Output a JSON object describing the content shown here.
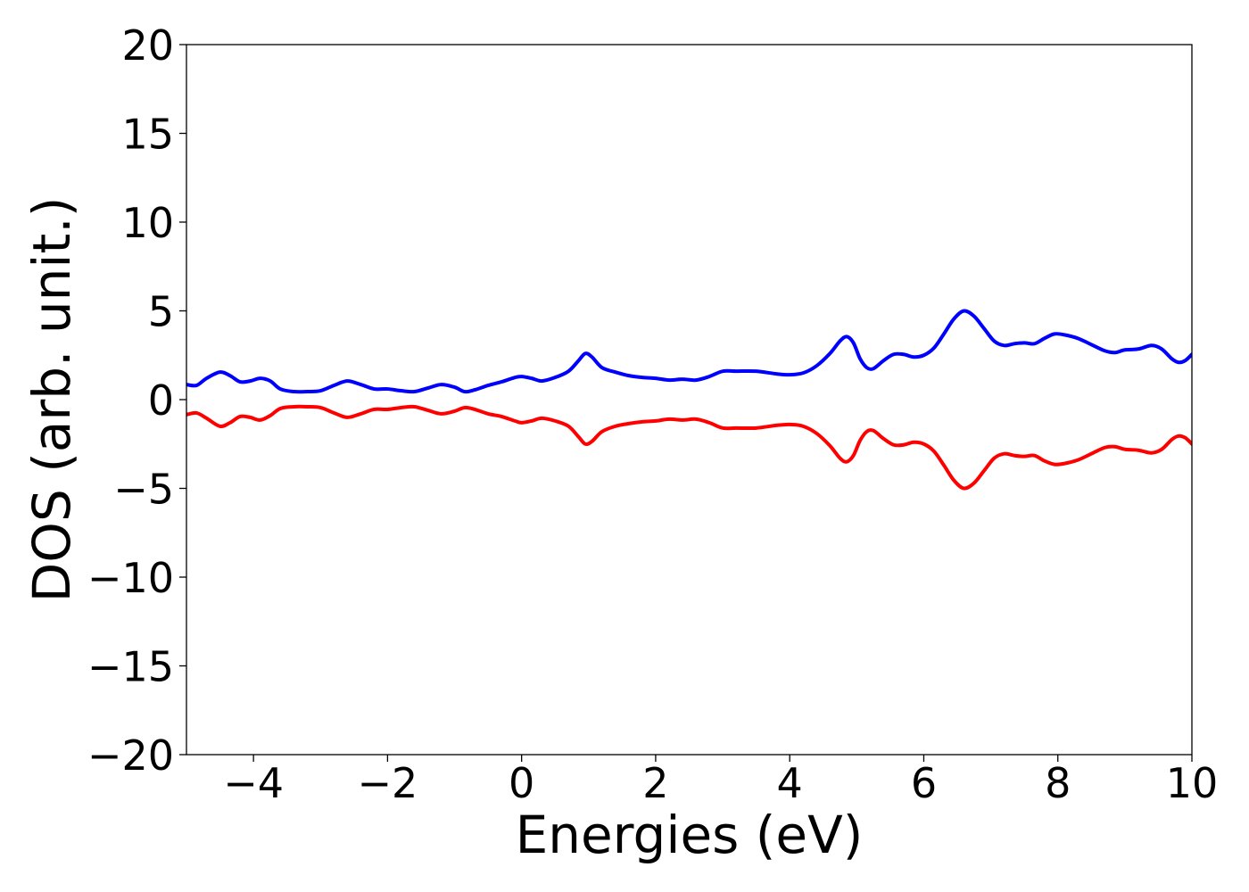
{
  "chart_data": {
    "type": "line",
    "title": "",
    "xlabel": "Energies (eV)",
    "ylabel": "DOS (arb. unit.)",
    "xlim": [
      -5,
      10
    ],
    "ylim": [
      -20,
      20
    ],
    "xticks": [
      -4,
      -2,
      0,
      2,
      4,
      6,
      8,
      10
    ],
    "xtick_labels": [
      "−4",
      "−2",
      "0",
      "2",
      "4",
      "6",
      "8",
      "10"
    ],
    "yticks": [
      20,
      15,
      10,
      5,
      0,
      -5,
      -10,
      -15,
      -20
    ],
    "ytick_labels": [
      "20",
      "15",
      "10",
      "5",
      "0",
      "−5",
      "−10",
      "−15",
      "−20"
    ],
    "grid": false,
    "legend": "none",
    "series": [
      {
        "color": "#0000ff",
        "points": [
          [
            -5.0,
            0.85
          ],
          [
            -4.85,
            0.8
          ],
          [
            -4.7,
            1.2
          ],
          [
            -4.5,
            1.55
          ],
          [
            -4.35,
            1.35
          ],
          [
            -4.2,
            1.0
          ],
          [
            -4.05,
            1.05
          ],
          [
            -3.9,
            1.2
          ],
          [
            -3.75,
            1.05
          ],
          [
            -3.6,
            0.6
          ],
          [
            -3.4,
            0.45
          ],
          [
            -3.2,
            0.45
          ],
          [
            -3.0,
            0.5
          ],
          [
            -2.8,
            0.8
          ],
          [
            -2.6,
            1.05
          ],
          [
            -2.4,
            0.85
          ],
          [
            -2.2,
            0.6
          ],
          [
            -2.0,
            0.6
          ],
          [
            -1.8,
            0.5
          ],
          [
            -1.6,
            0.45
          ],
          [
            -1.4,
            0.65
          ],
          [
            -1.2,
            0.85
          ],
          [
            -1.0,
            0.7
          ],
          [
            -0.85,
            0.45
          ],
          [
            -0.7,
            0.55
          ],
          [
            -0.5,
            0.8
          ],
          [
            -0.3,
            1.0
          ],
          [
            -0.1,
            1.25
          ],
          [
            0.0,
            1.3
          ],
          [
            0.15,
            1.2
          ],
          [
            0.3,
            1.05
          ],
          [
            0.5,
            1.25
          ],
          [
            0.7,
            1.6
          ],
          [
            0.85,
            2.2
          ],
          [
            0.95,
            2.6
          ],
          [
            1.05,
            2.4
          ],
          [
            1.2,
            1.8
          ],
          [
            1.4,
            1.55
          ],
          [
            1.6,
            1.35
          ],
          [
            1.8,
            1.25
          ],
          [
            2.0,
            1.2
          ],
          [
            2.2,
            1.1
          ],
          [
            2.4,
            1.15
          ],
          [
            2.6,
            1.1
          ],
          [
            2.8,
            1.3
          ],
          [
            3.0,
            1.6
          ],
          [
            3.2,
            1.6
          ],
          [
            3.5,
            1.6
          ],
          [
            3.8,
            1.45
          ],
          [
            4.0,
            1.4
          ],
          [
            4.2,
            1.5
          ],
          [
            4.4,
            1.9
          ],
          [
            4.6,
            2.6
          ],
          [
            4.75,
            3.3
          ],
          [
            4.85,
            3.55
          ],
          [
            4.95,
            3.2
          ],
          [
            5.05,
            2.3
          ],
          [
            5.15,
            1.8
          ],
          [
            5.25,
            1.75
          ],
          [
            5.4,
            2.2
          ],
          [
            5.55,
            2.55
          ],
          [
            5.7,
            2.55
          ],
          [
            5.85,
            2.4
          ],
          [
            6.0,
            2.5
          ],
          [
            6.15,
            2.9
          ],
          [
            6.3,
            3.7
          ],
          [
            6.45,
            4.55
          ],
          [
            6.6,
            5.0
          ],
          [
            6.75,
            4.7
          ],
          [
            6.9,
            4.0
          ],
          [
            7.05,
            3.3
          ],
          [
            7.2,
            3.05
          ],
          [
            7.35,
            3.15
          ],
          [
            7.5,
            3.2
          ],
          [
            7.65,
            3.15
          ],
          [
            7.8,
            3.45
          ],
          [
            7.95,
            3.7
          ],
          [
            8.1,
            3.65
          ],
          [
            8.3,
            3.45
          ],
          [
            8.5,
            3.1
          ],
          [
            8.7,
            2.75
          ],
          [
            8.85,
            2.65
          ],
          [
            9.0,
            2.8
          ],
          [
            9.2,
            2.85
          ],
          [
            9.4,
            3.05
          ],
          [
            9.55,
            2.85
          ],
          [
            9.7,
            2.3
          ],
          [
            9.8,
            2.1
          ],
          [
            9.9,
            2.2
          ],
          [
            10.0,
            2.55
          ]
        ]
      },
      {
        "color": "#ff0000",
        "points": [
          [
            -5.0,
            -0.85
          ],
          [
            -4.85,
            -0.75
          ],
          [
            -4.7,
            -1.05
          ],
          [
            -4.5,
            -1.5
          ],
          [
            -4.35,
            -1.3
          ],
          [
            -4.2,
            -0.95
          ],
          [
            -4.05,
            -1.0
          ],
          [
            -3.9,
            -1.15
          ],
          [
            -3.75,
            -0.9
          ],
          [
            -3.6,
            -0.5
          ],
          [
            -3.4,
            -0.4
          ],
          [
            -3.2,
            -0.4
          ],
          [
            -3.0,
            -0.45
          ],
          [
            -2.8,
            -0.75
          ],
          [
            -2.6,
            -1.0
          ],
          [
            -2.4,
            -0.8
          ],
          [
            -2.2,
            -0.55
          ],
          [
            -2.0,
            -0.55
          ],
          [
            -1.8,
            -0.45
          ],
          [
            -1.6,
            -0.4
          ],
          [
            -1.4,
            -0.6
          ],
          [
            -1.2,
            -0.8
          ],
          [
            -1.0,
            -0.65
          ],
          [
            -0.85,
            -0.45
          ],
          [
            -0.7,
            -0.55
          ],
          [
            -0.5,
            -0.8
          ],
          [
            -0.3,
            -0.95
          ],
          [
            -0.1,
            -1.2
          ],
          [
            0.0,
            -1.3
          ],
          [
            0.15,
            -1.2
          ],
          [
            0.3,
            -1.05
          ],
          [
            0.5,
            -1.2
          ],
          [
            0.7,
            -1.5
          ],
          [
            0.85,
            -2.1
          ],
          [
            0.95,
            -2.5
          ],
          [
            1.05,
            -2.35
          ],
          [
            1.2,
            -1.8
          ],
          [
            1.4,
            -1.5
          ],
          [
            1.6,
            -1.35
          ],
          [
            1.8,
            -1.25
          ],
          [
            2.0,
            -1.2
          ],
          [
            2.2,
            -1.1
          ],
          [
            2.4,
            -1.15
          ],
          [
            2.6,
            -1.1
          ],
          [
            2.8,
            -1.3
          ],
          [
            3.0,
            -1.6
          ],
          [
            3.2,
            -1.6
          ],
          [
            3.5,
            -1.6
          ],
          [
            3.8,
            -1.45
          ],
          [
            4.0,
            -1.4
          ],
          [
            4.2,
            -1.5
          ],
          [
            4.4,
            -1.9
          ],
          [
            4.6,
            -2.6
          ],
          [
            4.75,
            -3.3
          ],
          [
            4.85,
            -3.5
          ],
          [
            4.95,
            -3.15
          ],
          [
            5.05,
            -2.3
          ],
          [
            5.15,
            -1.8
          ],
          [
            5.25,
            -1.75
          ],
          [
            5.4,
            -2.2
          ],
          [
            5.55,
            -2.55
          ],
          [
            5.7,
            -2.55
          ],
          [
            5.85,
            -2.4
          ],
          [
            6.0,
            -2.5
          ],
          [
            6.15,
            -2.9
          ],
          [
            6.3,
            -3.7
          ],
          [
            6.45,
            -4.55
          ],
          [
            6.6,
            -5.0
          ],
          [
            6.75,
            -4.7
          ],
          [
            6.9,
            -4.0
          ],
          [
            7.05,
            -3.3
          ],
          [
            7.2,
            -3.05
          ],
          [
            7.35,
            -3.15
          ],
          [
            7.5,
            -3.2
          ],
          [
            7.65,
            -3.15
          ],
          [
            7.8,
            -3.45
          ],
          [
            7.95,
            -3.65
          ],
          [
            8.1,
            -3.6
          ],
          [
            8.3,
            -3.4
          ],
          [
            8.5,
            -3.05
          ],
          [
            8.7,
            -2.7
          ],
          [
            8.85,
            -2.65
          ],
          [
            9.0,
            -2.8
          ],
          [
            9.2,
            -2.85
          ],
          [
            9.4,
            -3.0
          ],
          [
            9.55,
            -2.8
          ],
          [
            9.7,
            -2.25
          ],
          [
            9.8,
            -2.05
          ],
          [
            9.9,
            -2.15
          ],
          [
            10.0,
            -2.5
          ]
        ]
      }
    ]
  }
}
